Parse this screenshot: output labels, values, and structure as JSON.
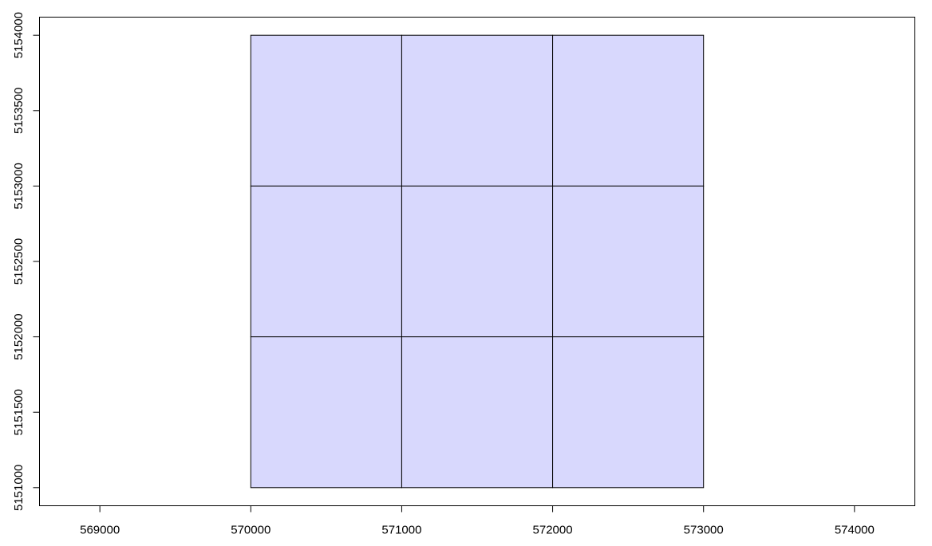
{
  "chart_data": {
    "type": "grid-polygons",
    "title": "",
    "xlabel": "",
    "ylabel": "",
    "xlim": [
      568600,
      574400
    ],
    "ylim": [
      5150880,
      5154120
    ],
    "x_ticks": [
      569000,
      570000,
      571000,
      572000,
      573000,
      574000
    ],
    "y_ticks": [
      5151000,
      5151500,
      5152000,
      5152500,
      5153000,
      5153500,
      5154000
    ],
    "x_tick_labels": [
      "569000",
      "570000",
      "571000",
      "572000",
      "573000",
      "574000"
    ],
    "y_tick_labels": [
      "5151000",
      "5151500",
      "5152000",
      "5152500",
      "5153000",
      "5153500",
      "5154000"
    ],
    "fill_color": "#d8d8fd",
    "border_color": "#000000",
    "grid": false,
    "cells": [
      {
        "x": [
          570000,
          571000
        ],
        "y": [
          5153000,
          5154000
        ]
      },
      {
        "x": [
          571000,
          572000
        ],
        "y": [
          5153000,
          5154000
        ]
      },
      {
        "x": [
          572000,
          573000
        ],
        "y": [
          5153000,
          5154000
        ]
      },
      {
        "x": [
          570000,
          571000
        ],
        "y": [
          5152000,
          5153000
        ]
      },
      {
        "x": [
          571000,
          572000
        ],
        "y": [
          5152000,
          5153000
        ]
      },
      {
        "x": [
          572000,
          573000
        ],
        "y": [
          5152000,
          5153000
        ]
      },
      {
        "x": [
          570000,
          571000
        ],
        "y": [
          5151000,
          5152000
        ]
      },
      {
        "x": [
          571000,
          572000
        ],
        "y": [
          5151000,
          5152000
        ]
      },
      {
        "x": [
          572000,
          573000
        ],
        "y": [
          5151000,
          5152000
        ]
      }
    ]
  }
}
